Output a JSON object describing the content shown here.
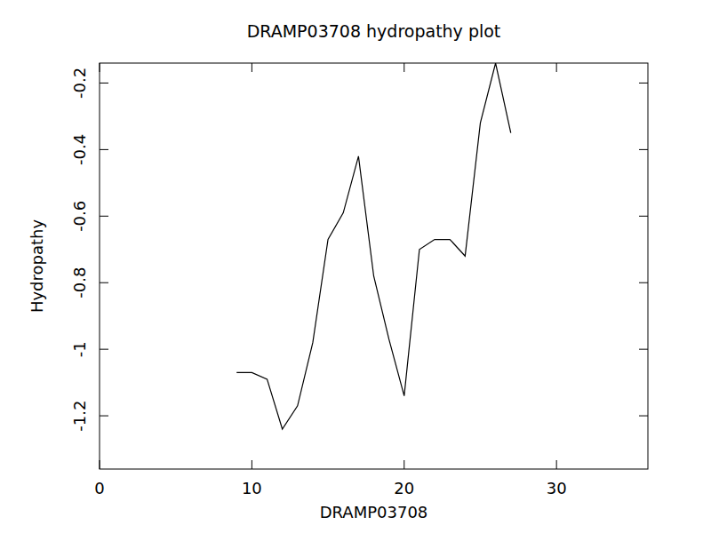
{
  "chart_data": {
    "type": "line",
    "title": "DRAMP03708 hydropathy plot",
    "x_label": "DRAMP03708",
    "y_label": "Hydropathy",
    "x": [
      9,
      10,
      11,
      12,
      13,
      14,
      15,
      16,
      17,
      18,
      19,
      20,
      21,
      22,
      23,
      24,
      25,
      26,
      27
    ],
    "values": [
      -1.07,
      -1.07,
      -1.09,
      -1.24,
      -1.17,
      -0.98,
      -0.67,
      -0.59,
      -0.42,
      -0.78,
      -0.97,
      -1.14,
      -0.7,
      -0.67,
      -0.67,
      -0.72,
      -0.32,
      -0.14,
      -0.35
    ],
    "color": "#000000",
    "xlim": [
      0,
      36
    ],
    "xticks": [
      0,
      10,
      20,
      30
    ],
    "ylim": [
      -1.36,
      -0.14
    ],
    "yticks": [
      -1.2,
      -1.0,
      -0.8,
      -0.6,
      -0.4,
      -0.2
    ],
    "grid": false
  }
}
